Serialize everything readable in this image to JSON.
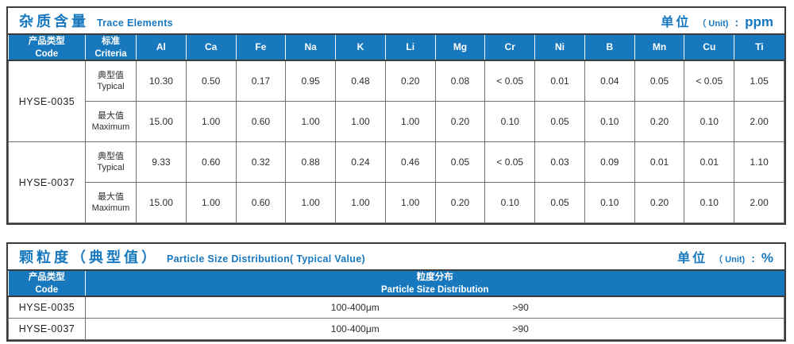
{
  "trace": {
    "title_zh": "杂质含量",
    "title_en": "Trace Elements",
    "unit": {
      "zh": "单位",
      "en": "（ Unit)",
      "colon": ":",
      "value": "ppm"
    },
    "header": {
      "code_zh": "产品类型",
      "code_en": "Code",
      "criteria_zh": "标准",
      "criteria_en": "Criteria"
    },
    "elements": [
      "Al",
      "Ca",
      "Fe",
      "Na",
      "K",
      "Li",
      "Mg",
      "Cr",
      "Ni",
      "B",
      "Mn",
      "Cu",
      "Ti"
    ],
    "groups": [
      {
        "code": "HYSE-0035",
        "rows": [
          {
            "label_zh": "典型值",
            "label_en": "Typical",
            "values": [
              "10.30",
              "0.50",
              "0.17",
              "0.95",
              "0.48",
              "0.20",
              "0.08",
              "< 0.05",
              "0.01",
              "0.04",
              "0.05",
              "< 0.05",
              "1.05"
            ]
          },
          {
            "label_zh": "最大值",
            "label_en": "Maximum",
            "values": [
              "15.00",
              "1.00",
              "0.60",
              "1.00",
              "1.00",
              "1.00",
              "0.20",
              "0.10",
              "0.05",
              "0.10",
              "0.20",
              "0.10",
              "2.00"
            ]
          }
        ]
      },
      {
        "code": "HYSE-0037",
        "rows": [
          {
            "label_zh": "典型值",
            "label_en": "Typical",
            "values": [
              "9.33",
              "0.60",
              "0.32",
              "0.88",
              "0.24",
              "0.46",
              "0.05",
              "< 0.05",
              "0.03",
              "0.09",
              "0.01",
              "0.01",
              "1.10"
            ]
          },
          {
            "label_zh": "最大值",
            "label_en": "Maximum",
            "values": [
              "15.00",
              "1.00",
              "0.60",
              "1.00",
              "1.00",
              "1.00",
              "0.20",
              "0.10",
              "0.05",
              "0.10",
              "0.20",
              "0.10",
              "2.00"
            ]
          }
        ]
      }
    ]
  },
  "particle": {
    "title_zh": "颗粒度（典型值）",
    "title_en": "Particle Size Distribution( Typical Value)",
    "unit": {
      "zh": "单位",
      "en": "（ Unit)",
      "colon": ":",
      "value": "%"
    },
    "header": {
      "code_zh": "产品类型",
      "code_en": "Code",
      "dist_zh": "粒度分布",
      "dist_en": "Particle Size  Distribution"
    },
    "rows": [
      {
        "code": "HYSE-0035",
        "range": "100-400μm",
        "value": ">90"
      },
      {
        "code": "HYSE-0037",
        "range": "100-400μm",
        "value": ">90"
      }
    ]
  }
}
